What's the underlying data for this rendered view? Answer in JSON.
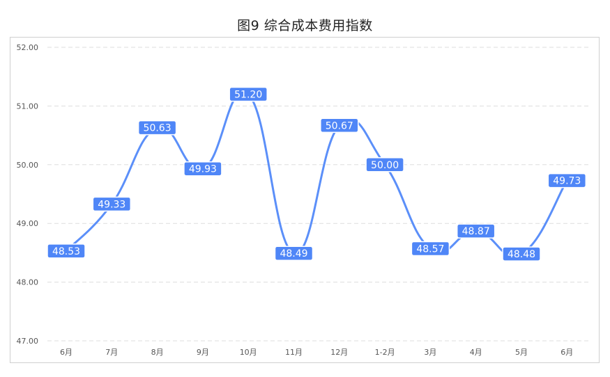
{
  "chart_data": {
    "type": "line",
    "title": "图9 综合成本费用指数",
    "categories": [
      "6月",
      "7月",
      "8月",
      "9月",
      "10月",
      "11月",
      "12月",
      "1-2月",
      "3月",
      "4月",
      "5月",
      "6月"
    ],
    "values": [
      48.53,
      49.33,
      50.63,
      49.93,
      51.2,
      48.49,
      50.67,
      50.0,
      48.57,
      48.87,
      48.48,
      49.73
    ],
    "value_labels": [
      "48.53",
      "49.33",
      "50.63",
      "49.93",
      "51.20",
      "48.49",
      "50.67",
      "50.00",
      "48.57",
      "48.87",
      "48.48",
      "49.73"
    ],
    "ylim": [
      47,
      52
    ],
    "yticks": [
      "47.00",
      "48.00",
      "49.00",
      "50.00",
      "51.00",
      "52.00"
    ],
    "ytick_values": [
      47,
      48,
      49,
      50,
      51,
      52
    ],
    "grid": true,
    "legend": "none",
    "smooth": true,
    "colors": {
      "line": "#5b8ff9",
      "label_bg": "#4f86f7",
      "label_text": "#ffffff",
      "grid": "#dddddd",
      "tick_text": "#555555"
    }
  }
}
